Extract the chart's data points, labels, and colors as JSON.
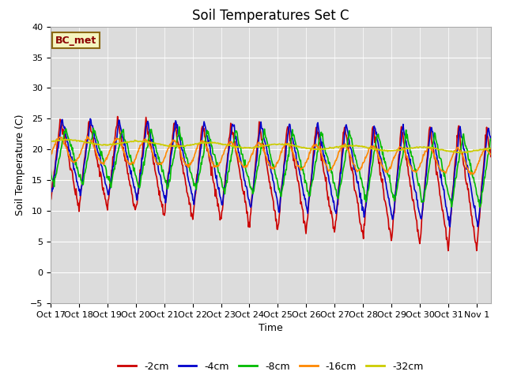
{
  "title": "Soil Temperatures Set C",
  "xlabel": "Time",
  "ylabel": "Soil Temperature (C)",
  "ylim": [
    -5,
    40
  ],
  "annotation": "BC_met",
  "xtick_labels": [
    "Oct 17",
    "Oct 18",
    "Oct 19",
    "Oct 20",
    "Oct 21",
    "Oct 22",
    "Oct 23",
    "Oct 24",
    "Oct 25",
    "Oct 26",
    "Oct 27",
    "Oct 28",
    "Oct 29",
    "Oct 30",
    "Oct 31",
    "Nov 1"
  ],
  "series_colors": {
    "-2cm": "#cc0000",
    "-4cm": "#0000cc",
    "-8cm": "#00bb00",
    "-16cm": "#ff8800",
    "-32cm": "#cccc00"
  },
  "title_fontsize": 12,
  "axis_label_fontsize": 9,
  "tick_fontsize": 8,
  "legend_fontsize": 9
}
